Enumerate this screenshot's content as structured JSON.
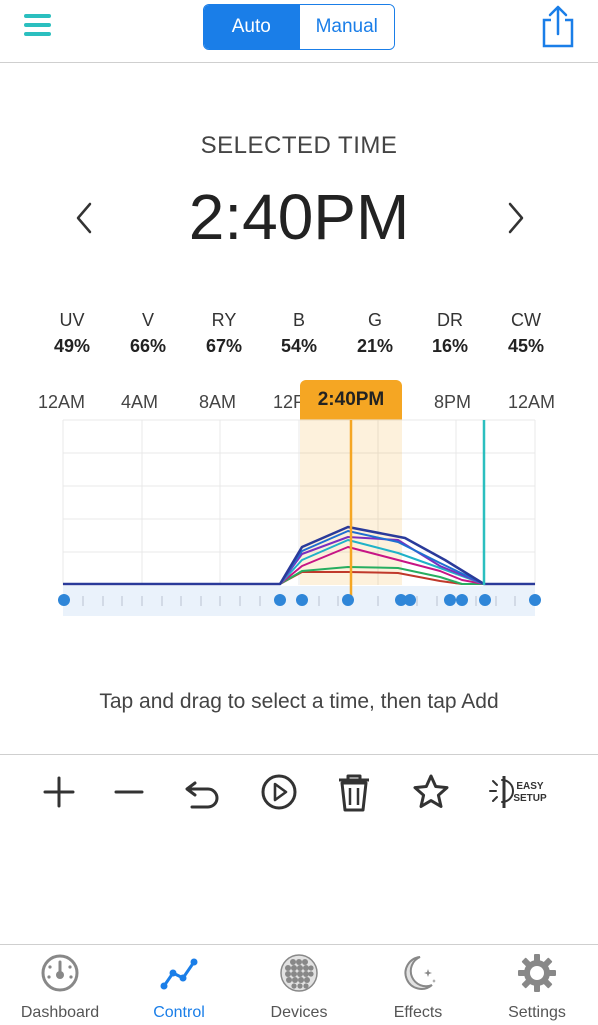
{
  "header": {
    "menu_icon": "hamburger-icon",
    "mode_auto": "Auto",
    "mode_manual": "Manual",
    "active_mode": "Auto",
    "share_icon": "share-icon"
  },
  "selected": {
    "label": "SELECTED TIME",
    "time": "2:40PM"
  },
  "channels": [
    {
      "name": "UV",
      "value": "49%"
    },
    {
      "name": "V",
      "value": "66%"
    },
    {
      "name": "RY",
      "value": "67%"
    },
    {
      "name": "B",
      "value": "54%"
    },
    {
      "name": "G",
      "value": "21%"
    },
    {
      "name": "DR",
      "value": "16%"
    },
    {
      "name": "CW",
      "value": "45%"
    }
  ],
  "graph": {
    "tick_labels": [
      "12AM",
      "4AM",
      "8AM",
      "12P",
      "8PM",
      "12AM"
    ],
    "current_time_badge": "2:40PM",
    "colors": {
      "accent": "#f5a623",
      "end_marker": "#2bbfbf",
      "baseline": "#2a3a9a",
      "point": "#2f86d8"
    }
  },
  "hint": "Tap and drag to select a time, then tap Add",
  "toolbar": [
    {
      "name": "add-point-button",
      "icon": "plus-icon"
    },
    {
      "name": "remove-point-button",
      "icon": "minus-icon"
    },
    {
      "name": "undo-button",
      "icon": "undo-icon"
    },
    {
      "name": "preview-button",
      "icon": "play-icon"
    },
    {
      "name": "delete-button",
      "icon": "trash-icon"
    },
    {
      "name": "favorite-button",
      "icon": "star-icon"
    },
    {
      "name": "easy-setup-button",
      "icon": "easy-setup-icon",
      "label_line1": "EASY",
      "label_line2": "SETUP"
    }
  ],
  "tabs": [
    {
      "label": "Dashboard",
      "icon": "gauge-icon"
    },
    {
      "label": "Control",
      "icon": "graph-icon"
    },
    {
      "label": "Devices",
      "icon": "devices-icon"
    },
    {
      "label": "Effects",
      "icon": "moon-stars-icon"
    },
    {
      "label": "Settings",
      "icon": "gear-icon"
    }
  ],
  "active_tab": "Control"
}
